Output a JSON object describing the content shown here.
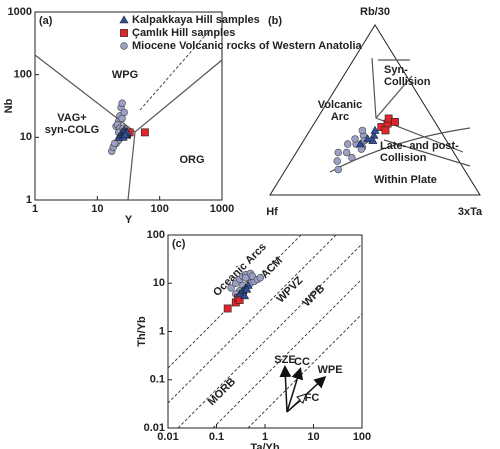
{
  "chart_data": [
    {
      "type": "scatter",
      "panel_label": "(a)",
      "xlabel": "Y",
      "ylabel": "Nb",
      "log_x": true,
      "log_y": true,
      "xlim": [
        1,
        1000
      ],
      "ylim": [
        1,
        1000
      ],
      "xticks": [
        1,
        10,
        100,
        1000
      ],
      "yticks": [
        1,
        10,
        100,
        1000
      ],
      "annotations": [
        "WPG",
        "VAG+",
        "syn-COLG",
        "ORG"
      ],
      "legend": "upper right",
      "series": [
        {
          "name": "Kalpakkaya Hill samples",
          "marker": "triangle",
          "color": "#2e4f9e",
          "x": [
            22,
            24,
            25,
            26,
            27,
            28,
            29,
            30,
            26,
            28
          ],
          "values": [
            10,
            11,
            12,
            11,
            13,
            12,
            11,
            12,
            10,
            11
          ]
        },
        {
          "name": "Çamlık Hill samples",
          "marker": "square",
          "color": "#e0262b",
          "x": [
            58,
            30,
            33
          ],
          "values": [
            12,
            11,
            12
          ]
        },
        {
          "name": "Miocene Volcanic rocks of Western Anatolia",
          "marker": "circle",
          "color": "#9aa0c6",
          "x": [
            17,
            18,
            20,
            22,
            24,
            25,
            26,
            28,
            20,
            22,
            23,
            24,
            25,
            27,
            21,
            23,
            19,
            24,
            26,
            22,
            25
          ],
          "values": [
            6,
            7,
            8,
            9,
            10,
            11,
            12,
            13,
            15,
            18,
            22,
            30,
            35,
            25,
            16,
            14,
            8,
            11,
            14,
            12,
            20
          ]
        }
      ]
    },
    {
      "type": "ternary",
      "panel_label": "(b)",
      "vertices": [
        "Rb/30",
        "Hf",
        "3xTa"
      ],
      "annotations": [
        "Syn-",
        "Collision",
        "Volcanic",
        "Arc",
        "Late- and post-",
        "Collision",
        "Within Plate"
      ],
      "series": [
        {
          "marker": "triangle",
          "color": "#2e4f9e",
          "hf": [
            0.42,
            0.37,
            0.33,
            0.31,
            0.35
          ],
          "rb_30": [
            0.3,
            0.33,
            0.35,
            0.38,
            0.32
          ],
          "ta_3": [
            0.28,
            0.3,
            0.32,
            0.31,
            0.33
          ]
        },
        {
          "marker": "square",
          "color": "#e0262b",
          "hf": [
            0.27,
            0.23,
            0.21,
            0.19,
            0.26
          ],
          "rb_30": [
            0.4,
            0.42,
            0.45,
            0.43,
            0.38
          ],
          "ta_3": [
            0.33,
            0.35,
            0.34,
            0.38,
            0.36
          ]
        },
        {
          "marker": "circle",
          "color": "#9aa0c6",
          "hf": [
            0.58,
            0.51,
            0.44,
            0.38,
            0.42,
            0.39,
            0.5,
            0.43,
            0.48,
            0.37,
            0.6,
            0.55,
            0.43
          ],
          "rb_30": [
            0.2,
            0.25,
            0.3,
            0.35,
            0.28,
            0.32,
            0.22,
            0.27,
            0.3,
            0.38,
            0.15,
            0.25,
            0.33
          ],
          "ta_3": [
            0.22,
            0.24,
            0.26,
            0.27,
            0.3,
            0.29,
            0.28,
            0.3,
            0.22,
            0.25,
            0.25,
            0.2,
            0.24
          ]
        }
      ]
    },
    {
      "type": "scatter",
      "panel_label": "(c)",
      "xlabel": "Ta/Yb",
      "ylabel": "Th/Yb",
      "log_x": true,
      "log_y": true,
      "xlim": [
        0.01,
        100
      ],
      "ylim": [
        0.01,
        100
      ],
      "xticks": [
        0.01,
        0.1,
        1,
        10,
        100
      ],
      "yticks": [
        0.01,
        0.1,
        1,
        10,
        100
      ],
      "annotations": [
        "Oceanic Arcs",
        "ACM",
        "WPVZ",
        "WPB",
        "MORB",
        "SZE",
        "CC",
        "WPE",
        "FC"
      ],
      "series": [
        {
          "marker": "triangle",
          "color": "#2e4f9e",
          "x": [
            0.3,
            0.35,
            0.4,
            0.45,
            0.38,
            0.42
          ],
          "values": [
            6,
            7,
            8,
            9,
            5.5,
            7.5
          ]
        },
        {
          "marker": "square",
          "color": "#e0262b",
          "x": [
            0.17,
            0.25,
            0.28,
            0.35,
            0.3
          ],
          "values": [
            3,
            4,
            5,
            6,
            4.5
          ]
        },
        {
          "marker": "circle",
          "color": "#9aa0c6",
          "x": [
            0.2,
            0.25,
            0.3,
            0.35,
            0.4,
            0.45,
            0.5,
            0.6,
            0.3,
            0.35,
            0.4,
            0.5,
            0.55,
            0.7,
            0.8,
            0.25,
            0.3
          ],
          "values": [
            8,
            10,
            12,
            14,
            15,
            12,
            10,
            11,
            7,
            9,
            13,
            16,
            14,
            12,
            13,
            6,
            5
          ]
        }
      ]
    }
  ]
}
